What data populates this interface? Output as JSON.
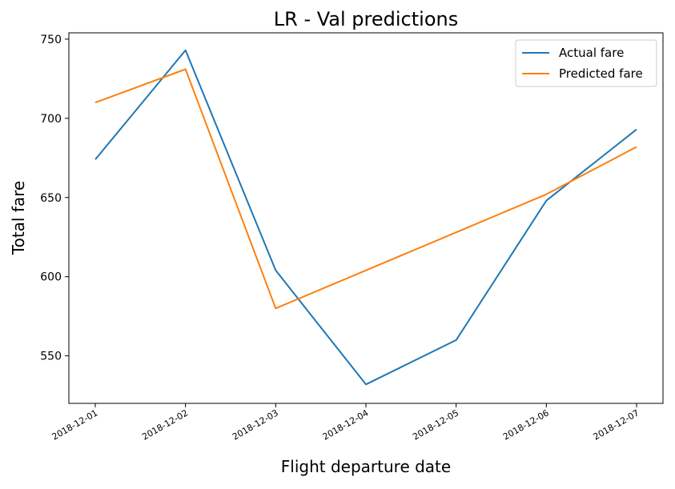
{
  "chart_data": {
    "type": "line",
    "title": "LR - Val predictions",
    "xlabel": "Flight departure date",
    "ylabel": "Total fare",
    "categories": [
      "2018-12-01",
      "2018-12-02",
      "2018-12-03",
      "2018-12-04",
      "2018-12-05",
      "2018-12-06",
      "2018-12-07"
    ],
    "ylim": [
      520,
      754
    ],
    "yticks": [
      550,
      600,
      650,
      700,
      750
    ],
    "legend_position": "top-right",
    "grid": false,
    "series": [
      {
        "name": "Actual fare",
        "color": "#1f77b4",
        "values": [
          674,
          743,
          604,
          532,
          560,
          648,
          693
        ]
      },
      {
        "name": "Predicted fare",
        "color": "#ff7f0e",
        "values": [
          710,
          731,
          580,
          604,
          628,
          652,
          682
        ]
      }
    ]
  }
}
